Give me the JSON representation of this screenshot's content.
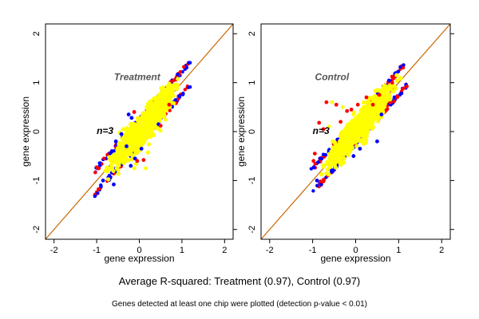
{
  "chart_data": [
    {
      "type": "scatter",
      "title": "",
      "annotation": "Treatment",
      "inset_label": "n=3",
      "xlabel": "gene expression",
      "ylabel": "gene expression",
      "xlim": [
        -2.2,
        2.2
      ],
      "ylim": [
        -2.2,
        2.2
      ],
      "x_ticks": [
        -2,
        -1,
        0,
        1,
        2
      ],
      "y_ticks": [
        -2,
        -1,
        0,
        1,
        2
      ],
      "reference_line": "y = x",
      "grid": false,
      "colors": {
        "high": "#0000ff",
        "mid": "#ff0000",
        "main": "#ffff00",
        "line": "#cc6600"
      },
      "cloud": {
        "x_range": [
          -1.05,
          1.2
        ],
        "spread": 0.12,
        "points": 900
      },
      "outliers": [
        {
          "x": -0.42,
          "y": -0.05,
          "color": "#0000ff"
        },
        {
          "x": -0.25,
          "y": 0.35,
          "color": "#0000ff"
        },
        {
          "x": -0.18,
          "y": 0.28,
          "color": "#0000ff"
        },
        {
          "x": -0.12,
          "y": 0.4,
          "color": "#ff0000"
        },
        {
          "x": -0.55,
          "y": -0.2,
          "color": "#0000ff"
        },
        {
          "x": -0.1,
          "y": -0.55,
          "color": "#0000ff"
        },
        {
          "x": -0.05,
          "y": -0.6,
          "color": "#ff0000"
        },
        {
          "x": 0.05,
          "y": -0.35,
          "color": "#0000ff"
        },
        {
          "x": 0.1,
          "y": -0.58,
          "color": "#ff0000"
        },
        {
          "x": -0.2,
          "y": -0.7,
          "color": "#0000ff"
        },
        {
          "x": 0.15,
          "y": -0.75,
          "color": "#ffff00"
        },
        {
          "x": 0.45,
          "y": 0.15,
          "color": "#0000ff"
        },
        {
          "x": 0.5,
          "y": 0.12,
          "color": "#ff0000"
        },
        {
          "x": -0.85,
          "y": -1.0,
          "color": "#0000ff"
        },
        {
          "x": -0.95,
          "y": -0.75,
          "color": "#ff0000"
        },
        {
          "x": -0.6,
          "y": -1.08,
          "color": "#0000ff"
        },
        {
          "x": 0.7,
          "y": 0.55,
          "color": "#ff0000"
        },
        {
          "x": -0.3,
          "y": -0.3,
          "color": "#0000ff"
        }
      ]
    },
    {
      "type": "scatter",
      "title": "",
      "annotation": "Control",
      "inset_label": "n=3",
      "xlabel": "gene expression",
      "ylabel": "gene expression",
      "xlim": [
        -2.2,
        2.2
      ],
      "ylim": [
        -2.2,
        2.2
      ],
      "x_ticks": [
        -2,
        -1,
        0,
        1,
        2
      ],
      "y_ticks": [
        -2,
        -1,
        0,
        1,
        2
      ],
      "reference_line": "y = x",
      "grid": false,
      "colors": {
        "high": "#0000ff",
        "mid": "#ff0000",
        "main": "#ffff00",
        "line": "#cc6600"
      },
      "cloud": {
        "x_range": [
          -1.05,
          1.2
        ],
        "spread": 0.12,
        "points": 900
      },
      "outliers": [
        {
          "x": -0.68,
          "y": 0.6,
          "color": "#ff0000"
        },
        {
          "x": -0.55,
          "y": 0.6,
          "color": "#ffff00"
        },
        {
          "x": -0.45,
          "y": 0.55,
          "color": "#ff0000"
        },
        {
          "x": -0.3,
          "y": 0.5,
          "color": "#ffff00"
        },
        {
          "x": -0.2,
          "y": 0.42,
          "color": "#ff0000"
        },
        {
          "x": -0.1,
          "y": 0.45,
          "color": "#ff0000"
        },
        {
          "x": -0.05,
          "y": 0.35,
          "color": "#ffff00"
        },
        {
          "x": 0.05,
          "y": 0.55,
          "color": "#ff0000"
        },
        {
          "x": -0.85,
          "y": 0.18,
          "color": "#ff0000"
        },
        {
          "x": -0.75,
          "y": 0.05,
          "color": "#ff0000"
        },
        {
          "x": -0.62,
          "y": 0.1,
          "color": "#ffff00"
        },
        {
          "x": -0.35,
          "y": 0.2,
          "color": "#ff0000"
        },
        {
          "x": 0.25,
          "y": 0.7,
          "color": "#ff0000"
        },
        {
          "x": 0.3,
          "y": 0.62,
          "color": "#ffff00"
        },
        {
          "x": 0.4,
          "y": 0.55,
          "color": "#ff0000"
        },
        {
          "x": 0.55,
          "y": 0.75,
          "color": "#ff0000"
        },
        {
          "x": 0.6,
          "y": 0.35,
          "color": "#0000ff"
        },
        {
          "x": 0.5,
          "y": -0.2,
          "color": "#0000ff"
        },
        {
          "x": 0.1,
          "y": -0.35,
          "color": "#0000ff"
        },
        {
          "x": -0.05,
          "y": -0.5,
          "color": "#0000ff"
        },
        {
          "x": -0.9,
          "y": -1.0,
          "color": "#0000ff"
        },
        {
          "x": -0.98,
          "y": -0.6,
          "color": "#ff0000"
        },
        {
          "x": -0.95,
          "y": -0.45,
          "color": "#ff0000"
        },
        {
          "x": 0.85,
          "y": 1.0,
          "color": "#ff0000"
        }
      ]
    }
  ],
  "captions": {
    "main": "Average R-squared: Treatment (0.97), Control (0.97)",
    "note": "Genes detected at least one chip were plotted (detection p-value < 0.01)"
  }
}
